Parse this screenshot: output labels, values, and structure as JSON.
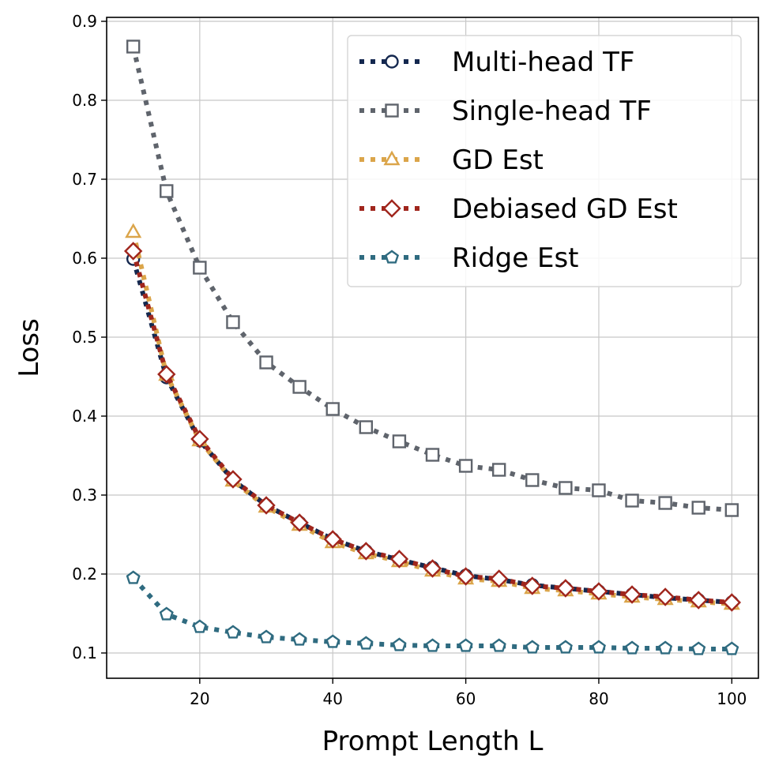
{
  "chart_data": {
    "type": "line",
    "title": "",
    "xlabel": "Prompt Length L",
    "ylabel": "Loss",
    "xlim": [
      6,
      104
    ],
    "ylim": [
      0.068,
      0.905
    ],
    "xticks": [
      20,
      40,
      60,
      80,
      100
    ],
    "yticks": [
      0.1,
      0.2,
      0.3,
      0.4,
      0.5,
      0.6,
      0.7,
      0.8,
      0.9
    ],
    "grid": true,
    "legend": "top-right",
    "x": [
      10,
      15,
      20,
      25,
      30,
      35,
      40,
      45,
      50,
      55,
      60,
      65,
      70,
      75,
      80,
      85,
      90,
      95,
      100
    ],
    "series": [
      {
        "name": "Multi-head TF",
        "color": "#14284f",
        "marker": "circle",
        "values": [
          0.599,
          0.449,
          0.369,
          0.319,
          0.287,
          0.265,
          0.244,
          0.229,
          0.218,
          0.208,
          0.198,
          0.193,
          0.186,
          0.182,
          0.178,
          0.174,
          0.17,
          0.167,
          0.164
        ]
      },
      {
        "name": "Single-head TF",
        "color": "#5f646c",
        "marker": "square",
        "values": [
          0.868,
          0.685,
          0.588,
          0.519,
          0.468,
          0.437,
          0.409,
          0.386,
          0.368,
          0.351,
          0.337,
          0.332,
          0.319,
          0.309,
          0.306,
          0.293,
          0.29,
          0.284,
          0.281
        ]
      },
      {
        "name": "GD Est",
        "color": "#dba54a",
        "marker": "triangle",
        "values": [
          0.633,
          0.452,
          0.369,
          0.318,
          0.285,
          0.262,
          0.24,
          0.226,
          0.216,
          0.204,
          0.194,
          0.191,
          0.182,
          0.179,
          0.175,
          0.171,
          0.168,
          0.165,
          0.162
        ]
      },
      {
        "name": "Debiased GD Est",
        "color": "#a0261d",
        "marker": "diamond",
        "values": [
          0.609,
          0.453,
          0.371,
          0.32,
          0.287,
          0.265,
          0.244,
          0.229,
          0.219,
          0.207,
          0.197,
          0.194,
          0.185,
          0.182,
          0.178,
          0.174,
          0.171,
          0.167,
          0.164
        ]
      },
      {
        "name": "Ridge Est",
        "color": "#2f6b80",
        "marker": "pentagon",
        "values": [
          0.195,
          0.149,
          0.133,
          0.126,
          0.12,
          0.117,
          0.114,
          0.112,
          0.11,
          0.109,
          0.109,
          0.109,
          0.107,
          0.107,
          0.107,
          0.106,
          0.106,
          0.105,
          0.105
        ]
      }
    ]
  }
}
